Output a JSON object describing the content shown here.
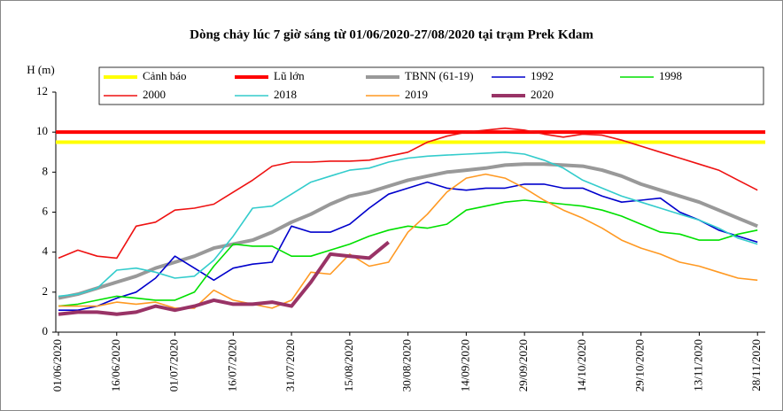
{
  "chart_data": {
    "type": "line",
    "title": "Dòng chảy lúc 7 giờ sáng từ 01/06/2020-27/08/2020 tại trạm Prek Kdam",
    "y_label": "H (m)",
    "ylim": [
      0,
      12
    ],
    "yticks": [
      0,
      2,
      4,
      6,
      8,
      10,
      12
    ],
    "xlim": [
      "2020-06-01",
      "2020-11-30"
    ],
    "xticks": [
      {
        "value": "2020-06-01",
        "label": "01/06/2020"
      },
      {
        "value": "2020-06-16",
        "label": "16/06/2020"
      },
      {
        "value": "2020-07-01",
        "label": "01/07/2020"
      },
      {
        "value": "2020-07-16",
        "label": "16/07/2020"
      },
      {
        "value": "2020-07-31",
        "label": "31/07/2020"
      },
      {
        "value": "2020-08-15",
        "label": "15/08/2020"
      },
      {
        "value": "2020-08-30",
        "label": "30/08/2020"
      },
      {
        "value": "2020-09-14",
        "label": "14/09/2020"
      },
      {
        "value": "2020-09-29",
        "label": "29/09/2020"
      },
      {
        "value": "2020-10-14",
        "label": "14/10/2020"
      },
      {
        "value": "2020-10-29",
        "label": "29/10/2020"
      },
      {
        "value": "2020-11-13",
        "label": "13/11/2020"
      },
      {
        "value": "2020-11-28",
        "label": "28/11/2020"
      }
    ],
    "reference_lines": [
      {
        "name": "Cảnh báo",
        "color": "#ffff00",
        "value": 9.5
      },
      {
        "name": "Lũ lớn",
        "color": "#ff0000",
        "value": 10
      }
    ],
    "x": [
      "2020-06-01",
      "2020-06-06",
      "2020-06-11",
      "2020-06-16",
      "2020-06-21",
      "2020-06-26",
      "2020-07-01",
      "2020-07-06",
      "2020-07-11",
      "2020-07-16",
      "2020-07-21",
      "2020-07-26",
      "2020-07-31",
      "2020-08-05",
      "2020-08-10",
      "2020-08-15",
      "2020-08-20",
      "2020-08-25",
      "2020-08-30",
      "2020-09-04",
      "2020-09-09",
      "2020-09-14",
      "2020-09-19",
      "2020-09-24",
      "2020-09-29",
      "2020-10-04",
      "2020-10-09",
      "2020-10-14",
      "2020-10-19",
      "2020-10-24",
      "2020-10-29",
      "2020-11-03",
      "2020-11-08",
      "2020-11-13",
      "2020-11-18",
      "2020-11-23",
      "2020-11-28"
    ],
    "series": [
      {
        "name": "TBNN (61-19)",
        "color": "#999999",
        "width": 4,
        "values": [
          1.7,
          1.9,
          2.2,
          2.5,
          2.8,
          3.2,
          3.5,
          3.8,
          4.2,
          4.4,
          4.6,
          5.0,
          5.5,
          5.9,
          6.4,
          6.8,
          7.0,
          7.3,
          7.6,
          7.8,
          8.0,
          8.1,
          8.2,
          8.35,
          8.4,
          8.4,
          8.35,
          8.3,
          8.1,
          7.8,
          7.4,
          7.1,
          6.8,
          6.5,
          6.1,
          5.7,
          5.3
        ]
      },
      {
        "name": "1992",
        "color": "#0000cc",
        "width": 1.6,
        "values": [
          1.1,
          1.1,
          1.3,
          1.7,
          2.0,
          2.7,
          3.8,
          3.2,
          2.6,
          3.2,
          3.4,
          3.5,
          5.3,
          5.0,
          5.0,
          5.4,
          6.2,
          6.9,
          7.2,
          7.5,
          7.2,
          7.1,
          7.2,
          7.2,
          7.4,
          7.4,
          7.2,
          7.2,
          6.8,
          6.5,
          6.6,
          6.7,
          6.0,
          5.6,
          5.1,
          4.8,
          4.5
        ]
      },
      {
        "name": "1998",
        "color": "#00e000",
        "width": 1.6,
        "values": [
          1.3,
          1.4,
          1.6,
          1.8,
          1.7,
          1.6,
          1.6,
          2.0,
          3.3,
          4.4,
          4.3,
          4.3,
          3.8,
          3.8,
          4.1,
          4.4,
          4.8,
          5.1,
          5.3,
          5.2,
          5.4,
          6.1,
          6.3,
          6.5,
          6.6,
          6.5,
          6.4,
          6.3,
          6.1,
          5.8,
          5.4,
          5.0,
          4.9,
          4.6,
          4.6,
          4.9,
          5.1
        ]
      },
      {
        "name": "2000",
        "color": "#ee1111",
        "width": 1.6,
        "values": [
          3.7,
          4.1,
          3.8,
          3.7,
          5.3,
          5.5,
          6.1,
          6.2,
          6.4,
          7.0,
          7.6,
          8.3,
          8.5,
          8.5,
          8.55,
          8.55,
          8.6,
          8.8,
          9.0,
          9.5,
          9.8,
          10.0,
          10.1,
          10.2,
          10.1,
          9.9,
          9.75,
          9.9,
          9.85,
          9.6,
          9.3,
          9.0,
          8.7,
          8.4,
          8.1,
          7.6,
          7.1
        ]
      },
      {
        "name": "2018",
        "color": "#33cccc",
        "width": 1.6,
        "values": [
          1.8,
          1.9,
          2.2,
          3.1,
          3.2,
          3.0,
          2.7,
          2.8,
          3.6,
          4.8,
          6.2,
          6.3,
          6.9,
          7.5,
          7.8,
          8.1,
          8.2,
          8.5,
          8.7,
          8.8,
          8.85,
          8.9,
          8.95,
          9.0,
          8.9,
          8.6,
          8.2,
          7.6,
          7.2,
          6.8,
          6.5,
          6.2,
          5.9,
          5.6,
          5.2,
          4.7,
          4.4
        ]
      },
      {
        "name": "2019",
        "color": "#ff9922",
        "width": 1.6,
        "values": [
          1.3,
          1.3,
          1.3,
          1.5,
          1.4,
          1.5,
          1.2,
          1.2,
          2.1,
          1.6,
          1.4,
          1.2,
          1.6,
          3.0,
          2.9,
          3.9,
          3.3,
          3.5,
          5.0,
          5.9,
          7.0,
          7.7,
          7.9,
          7.7,
          7.2,
          6.6,
          6.1,
          5.7,
          5.2,
          4.6,
          4.2,
          3.9,
          3.5,
          3.3,
          3.0,
          2.7,
          2.6
        ]
      },
      {
        "name": "2020",
        "color": "#993366",
        "width": 4,
        "values": [
          0.9,
          1.0,
          1.0,
          0.9,
          1.0,
          1.3,
          1.1,
          1.3,
          1.6,
          1.4,
          1.4,
          1.5,
          1.3,
          2.5,
          3.9,
          3.8,
          3.7,
          4.5,
          null,
          null,
          null,
          null,
          null,
          null,
          null,
          null,
          null,
          null,
          null,
          null,
          null,
          null,
          null,
          null,
          null,
          null,
          null
        ]
      }
    ]
  }
}
